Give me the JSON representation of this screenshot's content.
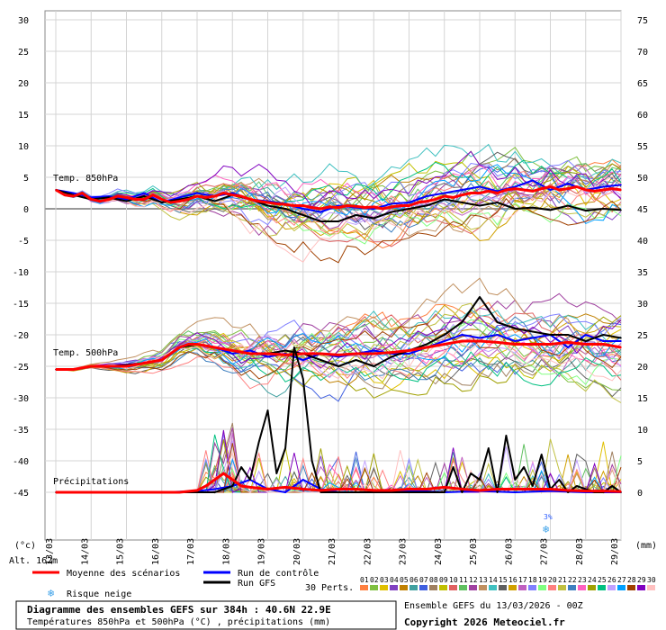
{
  "chart_data": {
    "type": "line",
    "left_axis": {
      "unit": "(°c)",
      "min": -45,
      "max": 30,
      "ticks": [
        30,
        25,
        20,
        15,
        10,
        5,
        0,
        -5,
        -10,
        -15,
        -20,
        -25,
        -30,
        -35,
        -40,
        -45
      ]
    },
    "right_axis": {
      "unit": "(mm)",
      "min": 0,
      "max": 75,
      "ticks": [
        75,
        70,
        65,
        60,
        55,
        50,
        45,
        40,
        35,
        30,
        25,
        20,
        15,
        10,
        5,
        0
      ]
    },
    "x_ticks": [
      "13/03",
      "14/03",
      "15/03",
      "16/03",
      "17/03",
      "18/03",
      "19/03",
      "20/03",
      "21/03",
      "22/03",
      "23/03",
      "24/03",
      "25/03",
      "26/03",
      "27/03",
      "28/03",
      "29/03"
    ],
    "x_range": [
      0,
      16
    ],
    "annotations": {
      "t850": "Temp. 850hPa",
      "t500": "Temp. 500hPa",
      "precip": "Précipitations",
      "altitude": "Alt. 162m",
      "snow_risk_value": "3%"
    },
    "series": [
      {
        "name": "Moyenne des scénarios",
        "role": "t850",
        "color": "#ff0000",
        "x": [
          0,
          0.25,
          0.5,
          0.75,
          1,
          1.25,
          1.5,
          1.75,
          2,
          2.25,
          2.5,
          2.75,
          3,
          3.25,
          3.5,
          3.75,
          4,
          4.25,
          4.5,
          4.75,
          5,
          5.25,
          5.5,
          5.75,
          6,
          6.25,
          6.5,
          6.75,
          7,
          7.25,
          7.5,
          7.75,
          8,
          8.25,
          8.5,
          8.75,
          9,
          9.25,
          9.5,
          9.75,
          10,
          10.25,
          10.5,
          10.75,
          11,
          11.25,
          11.5,
          11.75,
          12,
          12.25,
          12.5,
          12.75,
          13,
          13.25,
          13.5,
          13.75,
          14,
          14.25,
          14.5,
          14.75,
          15,
          15.25,
          15.5,
          15.75,
          16
        ],
        "values": [
          3,
          2.2,
          2,
          2.5,
          1.5,
          1.2,
          1.5,
          2,
          1.8,
          1.5,
          1.5,
          2.2,
          1.5,
          1,
          1.2,
          1.5,
          2,
          1.8,
          2,
          2.5,
          2.2,
          2,
          1.5,
          1.2,
          1,
          0.8,
          0.7,
          0.5,
          0.5,
          0.2,
          0,
          0.3,
          0.2,
          0.5,
          0.4,
          0.2,
          0.3,
          0,
          0.3,
          0.5,
          0.5,
          1,
          1.2,
          1.5,
          2,
          1.8,
          2.2,
          2.5,
          2.5,
          2.8,
          2.5,
          3,
          3.2,
          3,
          2.8,
          3.2,
          3.5,
          3,
          3.2,
          3.5,
          3,
          2.8,
          3,
          3.2,
          3
        ]
      },
      {
        "name": "Run de contrôle",
        "role": "t850",
        "color": "#0000ff",
        "x": [
          0,
          0.5,
          1,
          1.5,
          2,
          2.5,
          3,
          3.5,
          4,
          4.5,
          5,
          5.5,
          6,
          6.5,
          7,
          7.5,
          8,
          8.5,
          9,
          9.5,
          10,
          10.5,
          11,
          11.5,
          12,
          12.5,
          13,
          13.5,
          14,
          14.5,
          15,
          15.5,
          16
        ],
        "values": [
          3,
          2.5,
          1.8,
          2,
          1.5,
          2.5,
          1,
          1.8,
          2.5,
          2,
          2.5,
          1.5,
          1.2,
          0.8,
          0,
          -0.5,
          0.5,
          0.2,
          0,
          0.8,
          1,
          2,
          2.5,
          3,
          3.5,
          2.8,
          3.5,
          4.5,
          3,
          4,
          3,
          3.5,
          3.8
        ]
      },
      {
        "name": "Run GFS",
        "role": "t850",
        "color": "#000000",
        "x": [
          0,
          0.5,
          1,
          1.5,
          2,
          2.5,
          3,
          3.5,
          4,
          4.5,
          5,
          5.5,
          6,
          6.5,
          7,
          7.5,
          8,
          8.5,
          9,
          9.5,
          10,
          10.5,
          11,
          11.5,
          12,
          12.5,
          13,
          13.5,
          14,
          14.5,
          15,
          15.5,
          16
        ],
        "values": [
          3,
          2.2,
          1.5,
          1.8,
          1.2,
          2,
          1,
          1.5,
          2,
          1.2,
          2.2,
          1.5,
          0.5,
          0,
          -1,
          -2,
          -2,
          -1,
          -1.5,
          -0.5,
          0,
          0.5,
          1.5,
          1,
          0.5,
          1,
          0,
          0.2,
          -0.2,
          0.5,
          -0.3,
          0,
          -0.2
        ]
      },
      {
        "name": "Moyenne des scénarios",
        "role": "t500",
        "color": "#ff0000",
        "x": [
          0,
          0.5,
          1,
          1.5,
          2,
          2.5,
          3,
          3.25,
          3.5,
          3.75,
          4,
          4.5,
          5,
          5.5,
          6,
          6.5,
          7,
          7.5,
          8,
          8.5,
          9,
          9.5,
          10,
          10.5,
          11,
          11.5,
          12,
          12.5,
          13,
          13.5,
          14,
          14.5,
          15,
          15.5,
          16
        ],
        "values": [
          -25.5,
          -25.5,
          -25,
          -25,
          -25,
          -24.5,
          -24,
          -23,
          -22,
          -21.5,
          -21.5,
          -22,
          -22.5,
          -23,
          -23,
          -23.2,
          -23,
          -23,
          -23.2,
          -23,
          -23,
          -22.8,
          -22.5,
          -22,
          -21.5,
          -21,
          -21,
          -21.2,
          -21.5,
          -21.5,
          -21.5,
          -21.2,
          -21.5,
          -21.5,
          -22
        ]
      },
      {
        "name": "Run de contrôle",
        "role": "t500",
        "color": "#0000ff",
        "x": [
          0,
          0.5,
          1,
          1.5,
          2,
          2.5,
          3,
          3.5,
          4,
          4.5,
          5,
          5.5,
          6,
          6.5,
          7,
          7.5,
          8,
          8.5,
          9,
          9.5,
          10,
          10.5,
          11,
          11.5,
          12,
          12.5,
          13,
          13.5,
          14,
          14.5,
          15,
          15.5,
          16
        ],
        "values": [
          -25.5,
          -25.5,
          -25,
          -25,
          -24.8,
          -24.5,
          -24,
          -22,
          -21.5,
          -22,
          -23,
          -22.5,
          -23.5,
          -23,
          -24,
          -23,
          -23.5,
          -23,
          -22.5,
          -23,
          -23,
          -22,
          -21,
          -20,
          -20.5,
          -20,
          -21,
          -20.5,
          -20,
          -22,
          -20,
          -21,
          -21
        ]
      },
      {
        "name": "Run GFS",
        "role": "t500",
        "color": "#000000",
        "x": [
          0,
          0.5,
          1,
          1.5,
          2,
          2.5,
          3,
          3.5,
          4,
          4.5,
          5,
          5.5,
          6,
          6.5,
          7,
          7.5,
          8,
          8.5,
          9,
          9.5,
          10,
          10.5,
          11,
          11.5,
          12,
          12.5,
          13,
          13.5,
          14,
          14.5,
          15,
          15.5,
          16
        ],
        "values": [
          -25.5,
          -25.5,
          -25,
          -25,
          -24.8,
          -24.5,
          -24,
          -22,
          -21.5,
          -22,
          -22.5,
          -23,
          -23,
          -22.5,
          -23,
          -24,
          -25,
          -24,
          -25,
          -23.5,
          -22.5,
          -21.5,
          -20,
          -18,
          -14,
          -18,
          -19,
          -19.5,
          -20,
          -20,
          -21,
          -20,
          -20.5
        ]
      },
      {
        "name": "Moyenne des scénarios",
        "role": "precip",
        "color": "#ff0000",
        "x": [
          0,
          0.5,
          1,
          1.5,
          2,
          2.5,
          3,
          3.5,
          4,
          4.25,
          4.5,
          4.75,
          5,
          5.25,
          5.5,
          6,
          6.5,
          7,
          7.5,
          8,
          8.5,
          9,
          9.5,
          10,
          10.5,
          11,
          11.5,
          12,
          12.5,
          13,
          13.5,
          14,
          14.5,
          15,
          15.5,
          16
        ],
        "values": [
          0,
          0,
          0,
          0,
          0,
          0,
          0,
          0,
          0.3,
          1,
          2,
          3,
          2,
          1,
          0.8,
          0.5,
          0.8,
          0.5,
          0.3,
          0.5,
          0.5,
          0.3,
          0.3,
          0.5,
          0.5,
          0.8,
          0.5,
          0.3,
          0.5,
          0.5,
          0.5,
          0.5,
          0.3,
          0.2,
          0.2,
          0.1
        ]
      },
      {
        "name": "Run de contrôle",
        "role": "precip",
        "color": "#0000ff",
        "x": [
          0,
          1,
          2,
          3,
          4,
          4.5,
          5,
          5.5,
          6,
          6.5,
          7,
          7.5,
          8,
          9,
          10,
          11,
          12,
          13,
          14,
          15,
          16
        ],
        "values": [
          0,
          0,
          0,
          0,
          0.2,
          0.5,
          1,
          2,
          0.5,
          0,
          2,
          0.5,
          0,
          0,
          0.3,
          0,
          0.2,
          0,
          0.2,
          0,
          0
        ]
      },
      {
        "name": "Run GFS",
        "role": "precip",
        "color": "#000000",
        "x": [
          0,
          1,
          2,
          3,
          4,
          4.5,
          5,
          5.25,
          5.5,
          5.75,
          6,
          6.25,
          6.5,
          6.75,
          7,
          7.25,
          7.5,
          8,
          9,
          10,
          11,
          11.25,
          11.5,
          11.75,
          12,
          12.25,
          12.5,
          12.75,
          13,
          13.25,
          13.5,
          13.75,
          14,
          14.25,
          14.5,
          14.75,
          15,
          15.25,
          15.5,
          15.75,
          16
        ],
        "values": [
          0,
          0,
          0,
          0,
          0,
          0,
          1,
          4,
          2,
          8,
          13,
          3,
          7,
          23,
          18,
          5,
          0,
          0,
          0,
          0,
          0,
          4,
          0,
          3,
          2,
          7,
          0,
          9,
          2,
          4,
          1,
          6,
          0.5,
          2,
          0,
          1,
          0.5,
          0,
          0,
          1,
          0
        ]
      }
    ],
    "legend": {
      "placement": "bottom",
      "items": [
        {
          "label": "Moyenne des scénarios",
          "color": "#ff0000"
        },
        {
          "label": "Run de contrôle",
          "color": "#0000ff"
        },
        {
          "label": "Run GFS",
          "color": "#000000"
        }
      ],
      "snow_label": "Risque neige",
      "perts_label": "30 Perts.",
      "member_numbers": [
        "01",
        "02",
        "03",
        "04",
        "05",
        "06",
        "07",
        "08",
        "09",
        "10",
        "11",
        "12",
        "13",
        "14",
        "15",
        "16",
        "17",
        "18",
        "19",
        "20",
        "21",
        "22",
        "23",
        "24",
        "25",
        "26",
        "27",
        "28",
        "29",
        "30"
      ],
      "member_colors": [
        "#ff8040",
        "#80c040",
        "#e0c000",
        "#8040c0",
        "#c08000",
        "#40a0a0",
        "#4060e0",
        "#a08060",
        "#c0c000",
        "#e06060",
        "#60c060",
        "#a040a0",
        "#c09060",
        "#40c0c0",
        "#606060",
        "#d0a000",
        "#c060c0",
        "#8080ff",
        "#80ff80",
        "#ff8080",
        "#c0c040",
        "#4080c0",
        "#ff60c0",
        "#a0a000",
        "#00c080",
        "#c0a0ff",
        "#00a0ff",
        "#a04000",
        "#8000c0",
        "#ffc0c0"
      ]
    },
    "footer": {
      "title": "Diagramme des ensembles GEFS sur 384h : 40.6N 22.9E",
      "subtitle": "Températures 850hPa et 500hPa (°C) , précipitations (mm)",
      "run_info": "Ensemble GEFS du 13/03/2026 - 00Z",
      "copyright": "Copyright 2026 Meteociel.fr"
    }
  }
}
